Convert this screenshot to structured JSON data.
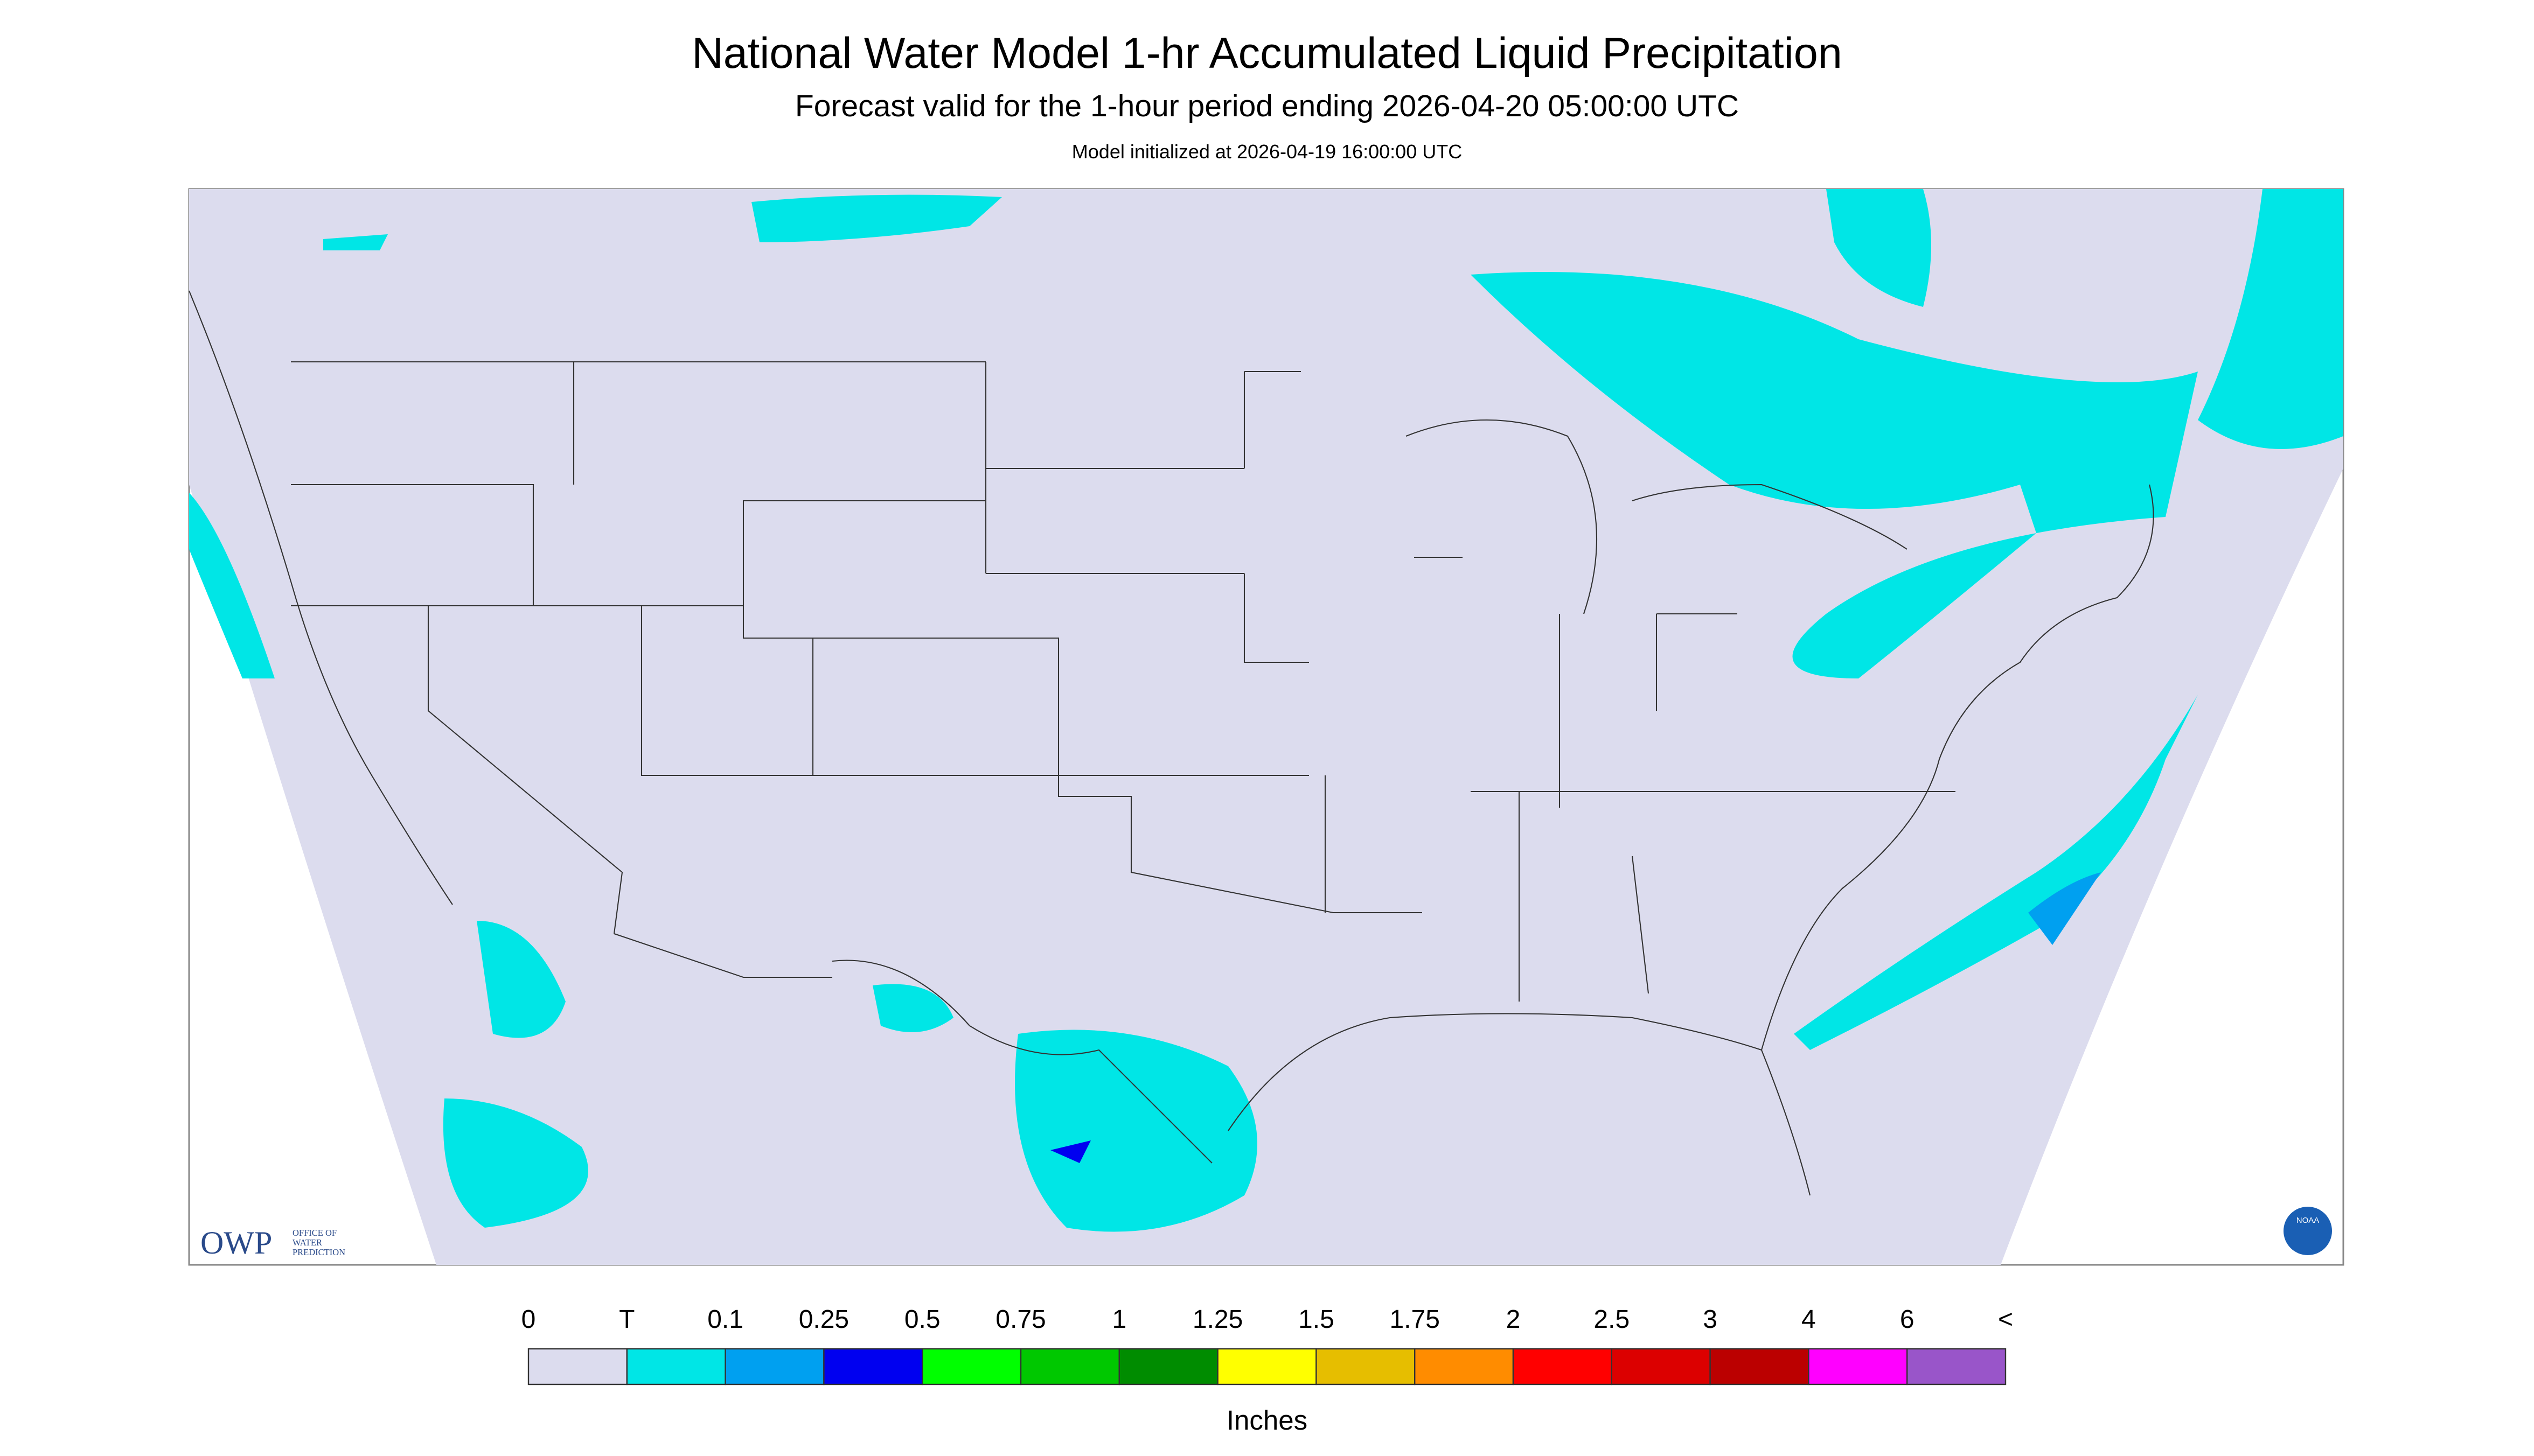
{
  "header": {
    "title": "National Water Model 1-hr Accumulated Liquid Precipitation",
    "subtitle": "Forecast valid for the 1-hour period ending 2026-04-20 05:00:00 UTC",
    "note": "Model initialized at 2026-04-19 16:00:00 UTC"
  },
  "logo": {
    "name": "OWP",
    "text": [
      "OFFICE OF",
      "WATER",
      "PREDICTION"
    ],
    "noaa": "NOAA"
  },
  "legend": {
    "labels": [
      "0",
      "T",
      "0.1",
      "0.25",
      "0.5",
      "0.75",
      "1",
      "1.25",
      "1.5",
      "1.75",
      "2",
      "2.5",
      "3",
      "4",
      "6",
      "<"
    ],
    "colors": [
      "#dcdcee",
      "#00e6e6",
      "#00a0f0",
      "#0000f0",
      "#00ff00",
      "#00c800",
      "#008c00",
      "#ffff00",
      "#e6be00",
      "#ff8c00",
      "#ff0000",
      "#dc0000",
      "#bb0000",
      "#ff00ff",
      "#9955c9"
    ],
    "unit": "Inches"
  }
}
